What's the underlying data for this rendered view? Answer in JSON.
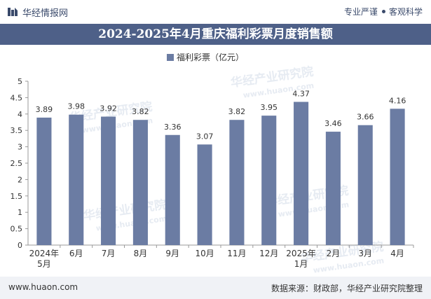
{
  "header": {
    "brand": "华经情报网",
    "tag1": "专业严谨",
    "tag2": "客观科学"
  },
  "title": "2024-2025年4月重庆福利彩票月度销售额",
  "footer": {
    "site": "www.huaon.com",
    "source": "数据来源：财政部，华经产业研究院整理"
  },
  "watermark": {
    "text": "华经产业研究院",
    "url": "www.huaon.com"
  },
  "colors": {
    "bar": "#6b7ca3",
    "title_bg": "#4e6088",
    "grid": "#dddddd"
  },
  "chart_data": {
    "type": "bar",
    "title": "2024-2025年4月重庆福利彩票月度销售额",
    "categories": [
      "2024年\n5月",
      "6月",
      "7月",
      "8月",
      "9月",
      "10月",
      "11月",
      "12月",
      "2025年\n1月",
      "2月",
      "3月",
      "4月"
    ],
    "series": [
      {
        "name": "福利彩票（亿元）",
        "values": [
          3.89,
          3.98,
          3.92,
          3.82,
          3.36,
          3.07,
          3.82,
          3.95,
          4.37,
          3.46,
          3.66,
          4.16
        ]
      }
    ],
    "ylim": [
      0,
      5
    ],
    "yticks": [
      0,
      0.5,
      1,
      1.5,
      2,
      2.5,
      3,
      3.5,
      4,
      4.5,
      5
    ],
    "grid": false,
    "legend": "top-center"
  }
}
